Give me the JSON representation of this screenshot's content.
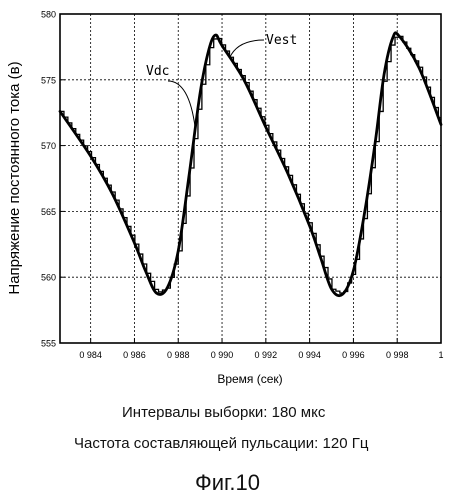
{
  "chart_data": {
    "type": "line",
    "ylabel": "Напряжение постоянного тока (в)",
    "xlabel": "Время (сек)",
    "xlim": [
      0.9826,
      1.0
    ],
    "ylim": [
      555,
      580
    ],
    "x_ticks": [
      0.984,
      0.986,
      0.988,
      0.99,
      0.992,
      0.994,
      0.996,
      0.998,
      1
    ],
    "x_tick_labels": [
      "0 984",
      "0 986",
      "0 988",
      "0 990",
      "0 992",
      "0 994",
      "0 996",
      "0 998",
      "1"
    ],
    "y_ticks": [
      555,
      560,
      565,
      570,
      575,
      580
    ],
    "y_tick_labels": [
      "555",
      "560",
      "565",
      "570",
      "575",
      "580"
    ],
    "grid": true,
    "series": [
      {
        "name": "Vdc",
        "style": "smooth",
        "color": "#000000",
        "x": [
          0.9826,
          0.984,
          0.985,
          0.986,
          0.9865,
          0.987,
          0.9875,
          0.988,
          0.9885,
          0.989,
          0.9894,
          0.9897,
          0.99,
          0.991,
          0.992,
          0.993,
          0.994,
          0.9945,
          0.995,
          0.9955,
          0.996,
          0.9965,
          0.997,
          0.9974,
          0.9978,
          0.9981,
          0.999,
          1.0
        ],
        "y": [
          572.6,
          569.2,
          566.3,
          562.6,
          560.5,
          558.8,
          559.2,
          562.0,
          567.8,
          574.0,
          577.3,
          578.4,
          577.6,
          575.0,
          571.4,
          567.9,
          563.9,
          561.5,
          559.1,
          558.7,
          560.5,
          564.8,
          570.3,
          575.4,
          578.2,
          578.3,
          575.9,
          571.6
        ]
      },
      {
        "name": "Vest",
        "style": "step",
        "color": "#000000",
        "step_interval": 0.00018,
        "x": [
          0.9826,
          0.984,
          0.985,
          0.986,
          0.9865,
          0.987,
          0.9875,
          0.988,
          0.9885,
          0.989,
          0.9894,
          0.9897,
          0.99,
          0.991,
          0.992,
          0.993,
          0.994,
          0.9945,
          0.995,
          0.9955,
          0.996,
          0.9965,
          0.997,
          0.9974,
          0.9978,
          0.9981,
          0.999,
          1.0
        ],
        "y": [
          572.6,
          569.2,
          566.3,
          562.6,
          560.5,
          558.8,
          559.2,
          562.0,
          567.8,
          574.0,
          577.3,
          578.4,
          577.6,
          575.0,
          571.4,
          567.9,
          563.9,
          561.5,
          559.1,
          558.7,
          560.5,
          564.8,
          570.3,
          575.4,
          578.2,
          578.3,
          575.9,
          571.6
        ]
      }
    ],
    "annotations": [
      "Vdc",
      "Vest"
    ]
  },
  "captions": {
    "sampling": "Интервалы выборки: 180 мкс",
    "ripple": "Частота составляющей пульсации: 120 Гц",
    "figure": "Фиг.10"
  }
}
